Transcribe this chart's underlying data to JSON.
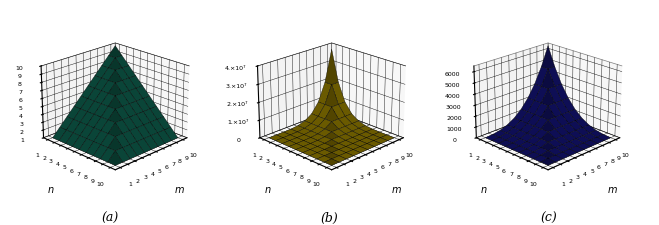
{
  "m_range": [
    1,
    10
  ],
  "n_range": [
    1,
    10
  ],
  "plot_a": {
    "color": "#1aab8a",
    "edge_color": "#000000",
    "label": "(a)",
    "zticks": [
      1,
      2,
      3,
      4,
      5,
      6,
      7,
      8,
      9,
      10
    ],
    "zlim": [
      1,
      10
    ]
  },
  "plot_b": {
    "color": "#ffd700",
    "edge_color": "#000000",
    "label": "(b)",
    "zticks": [
      0,
      10000000.0,
      20000000.0,
      30000000.0,
      40000000.0
    ],
    "ztick_labels": [
      "0",
      "1.×10⁷",
      "2.×10⁷",
      "3.×10⁷",
      "4.×10⁷"
    ],
    "zlim": [
      0,
      40000000.0
    ]
  },
  "plot_c": {
    "color": "#2222cc",
    "edge_color": "#000000",
    "label": "(c)",
    "zticks": [
      0,
      1000,
      2000,
      3000,
      4000,
      5000,
      6000
    ],
    "zlim": [
      0,
      6500
    ]
  },
  "n_tick_labels": [
    "10",
    "9",
    "8",
    "7",
    "6",
    "5",
    "4",
    "3",
    "2",
    "1"
  ],
  "m_tick_labels": [
    "1",
    "2",
    "3",
    "4",
    "5",
    "6",
    "7",
    "8",
    "9",
    "10"
  ],
  "elev": 22,
  "azim": 225,
  "xlabel": "m",
  "ylabel": "n"
}
